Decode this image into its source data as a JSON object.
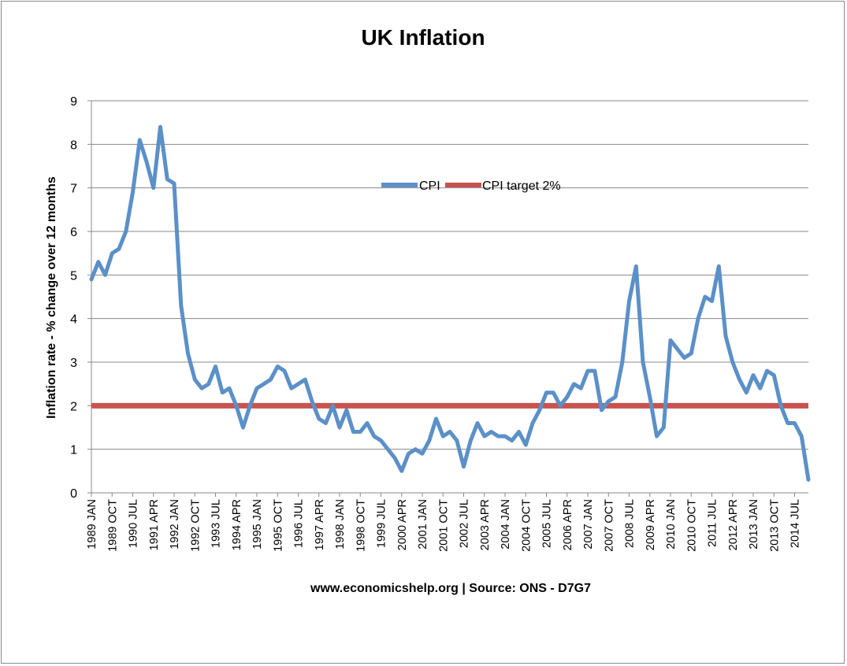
{
  "chart_data": {
    "type": "line",
    "title": "UK Inflation",
    "xlabel": "www.economicshelp.org | Source: ONS - D7G7",
    "ylabel": "Inflation rate  - % change over 12 months",
    "ylim": [
      0,
      9
    ],
    "yticks": [
      0,
      1,
      2,
      3,
      4,
      5,
      6,
      7,
      8,
      9
    ],
    "xtick_labels": [
      "1989 JAN",
      "1989 OCT",
      "1990 JUL",
      "1991 APR",
      "1992 JAN",
      "1992 OCT",
      "1993 JUL",
      "1994 APR",
      "1995 JAN",
      "1995 OCT",
      "1996 JUL",
      "1997 APR",
      "1998 JAN",
      "1998 OCT",
      "1999 JUL",
      "2000 APR",
      "2001 JAN",
      "2001 OCT",
      "2002 JUL",
      "2003 APR",
      "2004 JAN",
      "2004 OCT",
      "2005 JUL",
      "2006 APR",
      "2007 JAN",
      "2007 OCT",
      "2008 JUL",
      "2009 APR",
      "2010 JAN",
      "2010 OCT",
      "2011 JUL",
      "2012 APR",
      "2013 JAN",
      "2013 OCT",
      "2014 JUL"
    ],
    "grid": true,
    "legend_position": "top-center",
    "series": [
      {
        "name": "CPI",
        "color": "#5b90c8",
        "x": [
          "1989 JAN",
          "1989 APR",
          "1989 JUL",
          "1989 OCT",
          "1990 JAN",
          "1990 APR",
          "1990 JUL",
          "1990 OCT",
          "1991 JAN",
          "1991 APR",
          "1991 JUL",
          "1991 OCT",
          "1992 JAN",
          "1992 APR",
          "1992 JUL",
          "1992 OCT",
          "1993 JAN",
          "1993 APR",
          "1993 JUL",
          "1993 OCT",
          "1994 JAN",
          "1994 APR",
          "1994 JUL",
          "1994 OCT",
          "1995 JAN",
          "1995 APR",
          "1995 JUL",
          "1995 OCT",
          "1996 JAN",
          "1996 APR",
          "1996 JUL",
          "1996 OCT",
          "1997 JAN",
          "1997 APR",
          "1997 JUL",
          "1997 OCT",
          "1998 JAN",
          "1998 APR",
          "1998 JUL",
          "1998 OCT",
          "1999 JAN",
          "1999 APR",
          "1999 JUL",
          "1999 OCT",
          "2000 JAN",
          "2000 APR",
          "2000 JUL",
          "2000 OCT",
          "2001 JAN",
          "2001 APR",
          "2001 JUL",
          "2001 OCT",
          "2002 JAN",
          "2002 APR",
          "2002 JUL",
          "2002 OCT",
          "2003 JAN",
          "2003 APR",
          "2003 JUL",
          "2003 OCT",
          "2004 JAN",
          "2004 APR",
          "2004 JUL",
          "2004 OCT",
          "2005 JAN",
          "2005 APR",
          "2005 JUL",
          "2005 OCT",
          "2006 JAN",
          "2006 APR",
          "2006 JUL",
          "2006 OCT",
          "2007 JAN",
          "2007 APR",
          "2007 JUL",
          "2007 OCT",
          "2008 JAN",
          "2008 APR",
          "2008 JUL",
          "2008 OCT",
          "2009 JAN",
          "2009 APR",
          "2009 JUL",
          "2009 OCT",
          "2010 JAN",
          "2010 APR",
          "2010 JUL",
          "2010 OCT",
          "2011 JAN",
          "2011 APR",
          "2011 JUL",
          "2011 OCT",
          "2012 JAN",
          "2012 APR",
          "2012 JUL",
          "2012 OCT",
          "2013 JAN",
          "2013 APR",
          "2013 JUL",
          "2013 OCT",
          "2014 JAN",
          "2014 APR",
          "2014 JUL",
          "2014 OCT",
          "2015 JAN"
        ],
        "values": [
          4.9,
          5.3,
          5.0,
          5.5,
          5.6,
          6.0,
          6.9,
          8.1,
          7.6,
          7.0,
          8.4,
          7.2,
          7.1,
          4.3,
          3.2,
          2.6,
          2.4,
          2.5,
          2.9,
          2.3,
          2.4,
          2.0,
          1.5,
          2.0,
          2.4,
          2.5,
          2.6,
          2.9,
          2.8,
          2.4,
          2.5,
          2.6,
          2.1,
          1.7,
          1.6,
          2.0,
          1.5,
          1.9,
          1.4,
          1.4,
          1.6,
          1.3,
          1.2,
          1.0,
          0.8,
          0.5,
          0.9,
          1.0,
          0.9,
          1.2,
          1.7,
          1.3,
          1.4,
          1.2,
          0.6,
          1.2,
          1.6,
          1.3,
          1.4,
          1.3,
          1.3,
          1.2,
          1.4,
          1.1,
          1.6,
          1.9,
          2.3,
          2.3,
          2.0,
          2.2,
          2.5,
          2.4,
          2.8,
          2.8,
          1.9,
          2.1,
          2.2,
          3.0,
          4.4,
          5.2,
          3.0,
          2.2,
          1.3,
          1.5,
          3.5,
          3.3,
          3.1,
          3.2,
          4.0,
          4.5,
          4.4,
          5.2,
          3.6,
          3.0,
          2.6,
          2.3,
          2.7,
          2.4,
          2.8,
          2.7,
          2.0,
          1.6,
          1.6,
          1.3,
          0.3
        ]
      },
      {
        "name": "CPI target 2%",
        "color": "#c9524f",
        "x": [
          "1989 JAN",
          "2015 JAN"
        ],
        "values": [
          2,
          2
        ]
      }
    ]
  }
}
